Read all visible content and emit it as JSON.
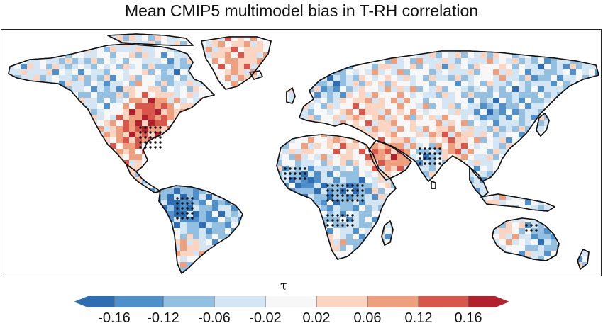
{
  "title": "Mean CMIP5 multimodel bias in T-RH correlation",
  "colorbar": {
    "symbol": "τ",
    "ticks": [
      "-0.16",
      "-0.12",
      "-0.06",
      "-0.02",
      "0.02",
      "0.06",
      "0.12",
      "0.16"
    ],
    "colors": [
      "#2f6db3",
      "#4f8fca",
      "#93bfe0",
      "#d4e6f3",
      "#f7f7f7",
      "#fbd5c2",
      "#eea07e",
      "#d9564b",
      "#b21f2d"
    ]
  },
  "map": {
    "projection": "equirectangular",
    "extent": {
      "lon": [
        -180,
        180
      ],
      "lat": [
        -60,
        85
      ]
    },
    "stipple_meaning": "significant"
  }
}
